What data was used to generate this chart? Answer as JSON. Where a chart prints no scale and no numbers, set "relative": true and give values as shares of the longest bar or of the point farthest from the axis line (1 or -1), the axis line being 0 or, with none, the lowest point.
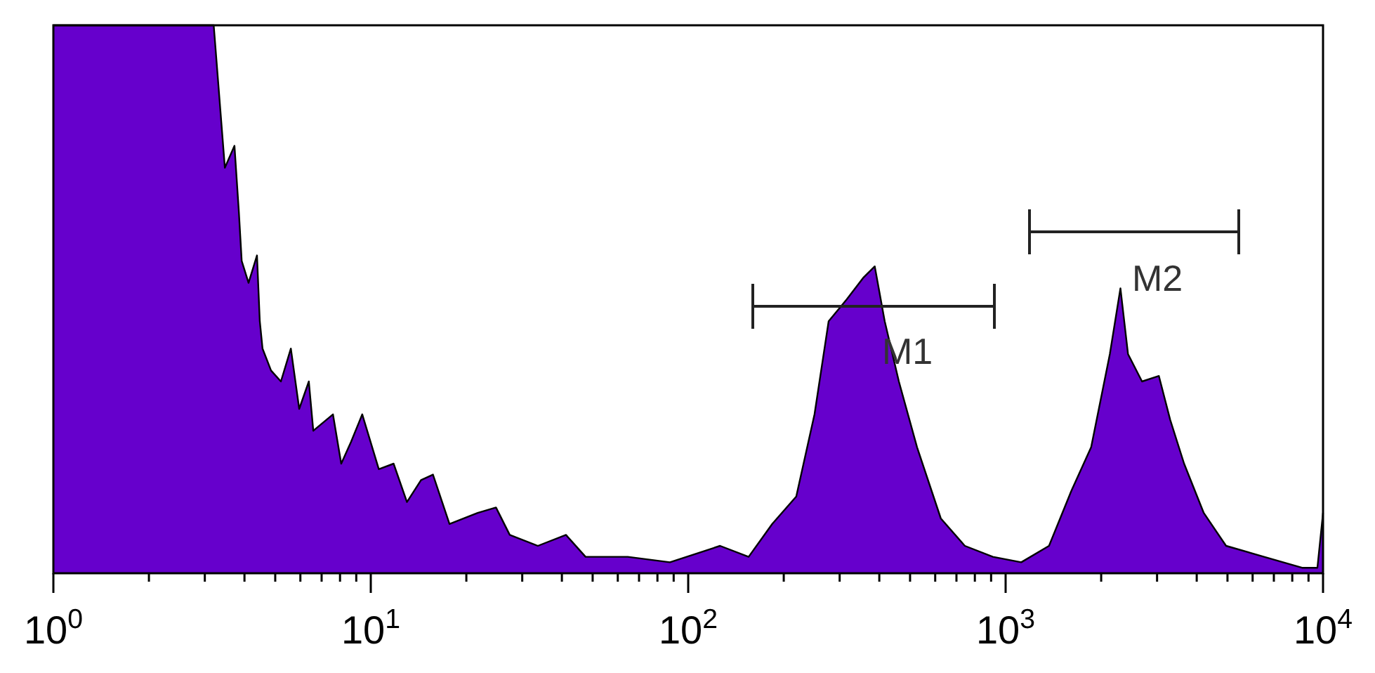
{
  "chart_data": {
    "type": "area",
    "relative": true,
    "log": "x",
    "xlim": [
      1,
      10000
    ],
    "xticks": [
      {
        "value": 1,
        "label": "10$^{0}$"
      },
      {
        "value": 2,
        "label": null
      },
      {
        "value": 3,
        "label": null
      },
      {
        "value": 4,
        "label": null
      },
      {
        "value": 5,
        "label": null
      },
      {
        "value": 6,
        "label": null
      },
      {
        "value": 7,
        "label": null
      },
      {
        "value": 8,
        "label": null
      },
      {
        "value": 9,
        "label": null
      },
      {
        "value": 10,
        "label": "10$^{1}$"
      },
      {
        "value": 20,
        "label": null
      },
      {
        "value": 30,
        "label": null
      },
      {
        "value": 40,
        "label": null
      },
      {
        "value": 50,
        "label": null
      },
      {
        "value": 60,
        "label": null
      },
      {
        "value": 70,
        "label": null
      },
      {
        "value": 80,
        "label": null
      },
      {
        "value": 90,
        "label": null
      },
      {
        "value": 100,
        "label": "10$^{2}$"
      },
      {
        "value": 200,
        "label": null
      },
      {
        "value": 300,
        "label": null
      },
      {
        "value": 400,
        "label": null
      },
      {
        "value": 500,
        "label": null
      },
      {
        "value": 600,
        "label": null
      },
      {
        "value": 700,
        "label": null
      },
      {
        "value": 800,
        "label": null
      },
      {
        "value": 900,
        "label": null
      },
      {
        "value": 1000,
        "label": "10$^{3}$"
      },
      {
        "value": 2000,
        "label": null
      },
      {
        "value": 3000,
        "label": null
      },
      {
        "value": 4000,
        "label": null
      },
      {
        "value": 5000,
        "label": null
      },
      {
        "value": 6000,
        "label": null
      },
      {
        "value": 7000,
        "label": null
      },
      {
        "value": 8000,
        "label": null
      },
      {
        "value": 9000,
        "label": null
      },
      {
        "value": 10000,
        "label": "10$^{4}$"
      }
    ],
    "x": [
      1,
      3.2,
      3.47,
      3.72,
      3.84,
      3.92,
      4.12,
      4.38,
      4.47,
      4.56,
      4.85,
      5.21,
      5.6,
      5.95,
      6.38,
      6.59,
      7.6,
      8.07,
      8.67,
      9.4,
      10.6,
      11.8,
      13.0,
      14.4,
      15.7,
      17.7,
      21.7,
      24.8,
      27.4,
      33.6,
      41.2,
      47.5,
      64.5,
      87.6,
      126,
      155,
      184,
      219,
      250,
      277,
      316,
      357,
      387,
      416,
      461,
      526,
      625,
      744,
      912,
      1120,
      1370,
      1610,
      1860,
      2130,
      2300,
      2430,
      2690,
      3040,
      3300,
      3650,
      4210,
      4950,
      6520,
      8590,
      9600,
      10000
    ],
    "series": [
      {
        "color": "#6600cc",
        "values": [
          1,
          1,
          0.74,
          0.78,
          0.66,
          0.57,
          0.53,
          0.58,
          0.46,
          0.41,
          0.37,
          0.35,
          0.41,
          0.3,
          0.35,
          0.26,
          0.29,
          0.2,
          0.24,
          0.29,
          0.19,
          0.2,
          0.13,
          0.17,
          0.18,
          0.09,
          0.11,
          0.12,
          0.07,
          0.05,
          0.07,
          0.03,
          0.03,
          0.02,
          0.05,
          0.03,
          0.09,
          0.14,
          0.29,
          0.46,
          0.5,
          0.54,
          0.56,
          0.46,
          0.35,
          0.23,
          0.1,
          0.05,
          0.03,
          0.02,
          0.05,
          0.15,
          0.23,
          0.4,
          0.52,
          0.4,
          0.35,
          0.36,
          0.28,
          0.2,
          0.11,
          0.05,
          0.03,
          0.01,
          0.01,
          0.11
        ]
      }
    ],
    "annotations": [
      "M1",
      "M2"
    ]
  }
}
